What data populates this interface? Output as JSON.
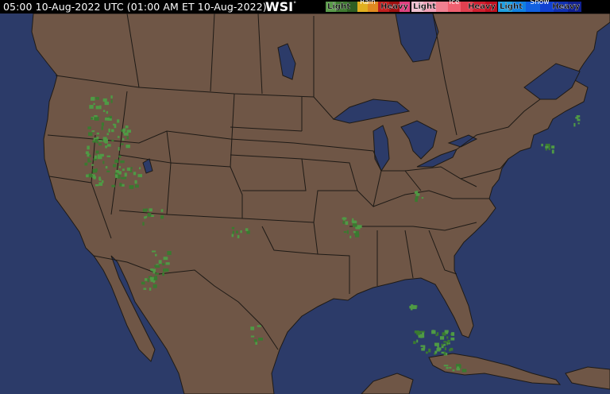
{
  "header": {
    "timestamp": "05:00 10-Aug-2022 UTC  (01:00 AM ET 10-Aug-2022)",
    "logo": "WSI",
    "logo_mark": "°"
  },
  "legend": [
    {
      "name": "Rain",
      "light": "Light",
      "heavy": "Heavy",
      "colors": [
        "#5a9a4a",
        "#3f7a30",
        "#2e5e22",
        "#e0b020",
        "#e08a20",
        "#c02020",
        "#a01010",
        "#e04080"
      ]
    },
    {
      "name": "Ice",
      "light": "Light",
      "heavy": "Heavy",
      "colors": [
        "#f0c0d0",
        "#f0a0b8",
        "#f08090",
        "#f06070",
        "#e04050",
        "#d02030",
        "#c01020"
      ]
    },
    {
      "name": "Snow",
      "light": "Light",
      "heavy": "Heavy",
      "colors": [
        "#20a0e0",
        "#1080e0",
        "#1060e0",
        "#1040d0",
        "#1030b0",
        "#102090"
      ]
    }
  ],
  "map_colors": {
    "ocean": "#2c3b69",
    "land": "#6f5646",
    "borders": "#1e1a16",
    "radar_light": "#4f9a45",
    "radar_mid": "#3a7a30"
  }
}
